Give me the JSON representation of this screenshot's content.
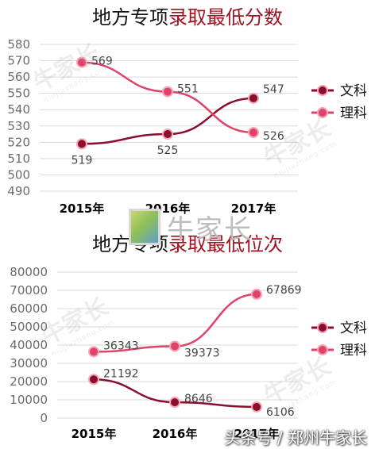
{
  "chart_data": [
    {
      "type": "line",
      "title_part1": "地方专项",
      "title_part2": "录取最低分数",
      "title_color_1": "#111111",
      "title_color_2": "#a2111f",
      "categories": [
        "2015年",
        "2016年",
        "2017年"
      ],
      "series": [
        {
          "name": "文科",
          "values": [
            519,
            525,
            547
          ],
          "color": "#8b0f2c"
        },
        {
          "name": "理科",
          "values": [
            569,
            551,
            526
          ],
          "color": "#e0436a"
        }
      ],
      "ylim": [
        490,
        580
      ],
      "yticks": [
        "490",
        "500",
        "510",
        "520",
        "530",
        "540",
        "550",
        "560",
        "570",
        "580"
      ],
      "grid": true,
      "legend": "right"
    },
    {
      "type": "line",
      "title_part1": "地方专项",
      "title_part2": "录取最低位次",
      "title_color_1": "#111111",
      "title_color_2": "#a2111f",
      "categories": [
        "2015年",
        "2016年",
        "2017年"
      ],
      "series": [
        {
          "name": "文科",
          "values": [
            21192,
            8646,
            6106
          ],
          "color": "#8b0f2c"
        },
        {
          "name": "理科",
          "values": [
            36343,
            39373,
            67869
          ],
          "color": "#e0436a"
        }
      ],
      "ylim": [
        0,
        80000
      ],
      "yticks": [
        "0",
        "10000",
        "20000",
        "30000",
        "40000",
        "50000",
        "60000",
        "70000",
        "80000"
      ],
      "grid": true,
      "legend": "right"
    }
  ],
  "watermark": {
    "text": "牛家长",
    "url": "niujiazhang.com"
  },
  "footer_text": "头条号 / 郑州牛家长"
}
